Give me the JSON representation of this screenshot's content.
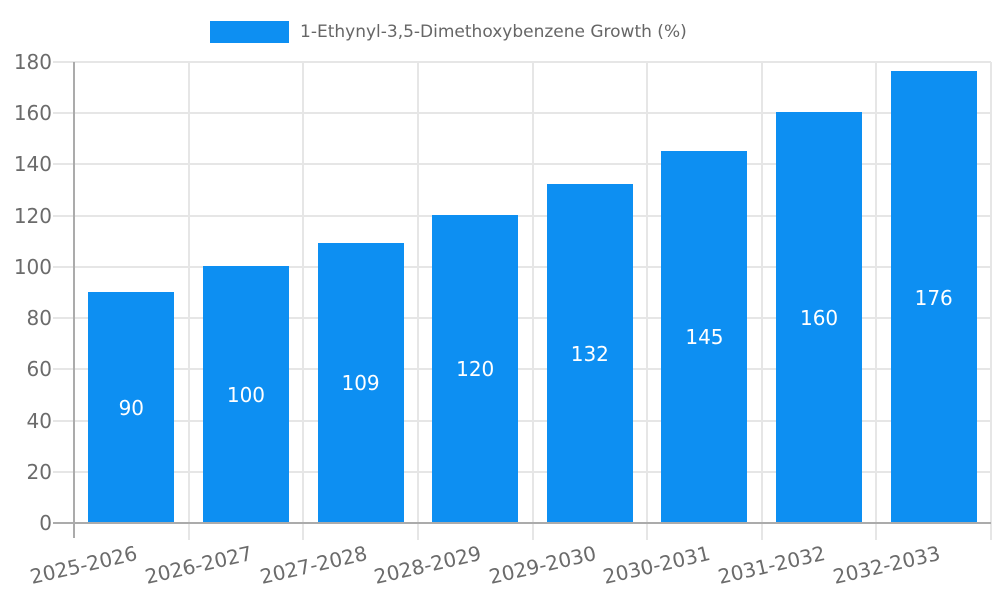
{
  "chart_data": {
    "type": "bar",
    "legend_label": "1-Ethynyl-3,5-Dimethoxybenzene Growth (%)",
    "categories": [
      "2025-2026",
      "2026-2027",
      "2027-2028",
      "2028-2029",
      "2029-2030",
      "2030-2031",
      "2031-2032",
      "2032-2033"
    ],
    "values": [
      90,
      100,
      109,
      120,
      132,
      145,
      160,
      176
    ],
    "yticks": [
      0,
      20,
      40,
      60,
      80,
      100,
      120,
      140,
      160,
      180
    ],
    "ylim": [
      0,
      180
    ],
    "xlabel": "",
    "ylabel": "",
    "grid": true,
    "legend_position": "top",
    "x_label_rotation_deg": -13,
    "value_labels": "centered-inside-bars"
  },
  "colors": {
    "bar": "#0D8FF2",
    "grid": "#e6e6e6",
    "axis": "#ababab",
    "tick_text": "#6b6b6b",
    "legend_text": "#666666",
    "value_text": "#ffffff",
    "background": "#ffffff"
  }
}
